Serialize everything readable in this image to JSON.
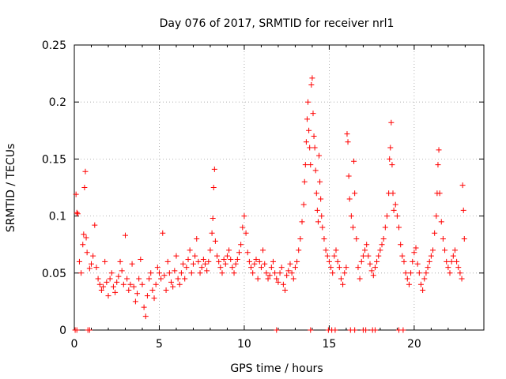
{
  "chart_data": {
    "type": "scatter",
    "title": "Day 076 of 2017, SRMTID for receiver nrl1",
    "xlabel": "GPS time / hours",
    "ylabel": "SRMTID / TECUs",
    "xlim": [
      0,
      24.1
    ],
    "ylim": [
      0,
      0.25
    ],
    "xticks": [
      0,
      5,
      10,
      15,
      20
    ],
    "xtick_labels": [
      "0",
      "5",
      "10",
      "15",
      "20"
    ],
    "yticks": [
      0,
      0.05,
      0.1,
      0.15,
      0.2,
      0.25
    ],
    "ytick_labels": [
      "0",
      "0.05",
      "0.1",
      "0.15",
      "0.2",
      "0.25"
    ],
    "grid": true,
    "marker": "+",
    "color": "#ff0000",
    "series": [
      {
        "name": "SRMTID",
        "points": [
          [
            0.05,
            0.0
          ],
          [
            0.15,
            0.0
          ],
          [
            0.8,
            0.0
          ],
          [
            0.9,
            0.0
          ],
          [
            11.9,
            0.0
          ],
          [
            13.9,
            0.0
          ],
          [
            14.95,
            0.0
          ],
          [
            15.15,
            0.0
          ],
          [
            15.35,
            0.0
          ],
          [
            16.25,
            0.0
          ],
          [
            16.5,
            0.0
          ],
          [
            17.0,
            0.0
          ],
          [
            17.15,
            0.0
          ],
          [
            17.55,
            0.0
          ],
          [
            17.7,
            0.0
          ],
          [
            19.1,
            0.0
          ],
          [
            19.35,
            0.0
          ],
          [
            0.1,
            0.119
          ],
          [
            0.15,
            0.103
          ],
          [
            0.2,
            0.102
          ],
          [
            0.3,
            0.06
          ],
          [
            0.4,
            0.05
          ],
          [
            0.5,
            0.075
          ],
          [
            0.55,
            0.084
          ],
          [
            0.6,
            0.125
          ],
          [
            0.65,
            0.139
          ],
          [
            0.7,
            0.081
          ],
          [
            0.75,
            0.068
          ],
          [
            0.9,
            0.054
          ],
          [
            1.0,
            0.058
          ],
          [
            1.1,
            0.065
          ],
          [
            1.2,
            0.092
          ],
          [
            1.3,
            0.055
          ],
          [
            1.4,
            0.045
          ],
          [
            1.5,
            0.04
          ],
          [
            1.6,
            0.035
          ],
          [
            1.7,
            0.038
          ],
          [
            1.8,
            0.06
          ],
          [
            1.9,
            0.042
          ],
          [
            2.0,
            0.03
          ],
          [
            2.1,
            0.045
          ],
          [
            2.2,
            0.05
          ],
          [
            2.3,
            0.038
          ],
          [
            2.4,
            0.033
          ],
          [
            2.5,
            0.042
          ],
          [
            2.6,
            0.047
          ],
          [
            2.7,
            0.06
          ],
          [
            2.8,
            0.052
          ],
          [
            2.9,
            0.04
          ],
          [
            3.0,
            0.083
          ],
          [
            3.1,
            0.045
          ],
          [
            3.2,
            0.035
          ],
          [
            3.3,
            0.04
          ],
          [
            3.4,
            0.058
          ],
          [
            3.5,
            0.038
          ],
          [
            3.6,
            0.025
          ],
          [
            3.7,
            0.032
          ],
          [
            3.8,
            0.045
          ],
          [
            3.9,
            0.062
          ],
          [
            4.0,
            0.04
          ],
          [
            4.1,
            0.02
          ],
          [
            4.2,
            0.012
          ],
          [
            4.3,
            0.03
          ],
          [
            4.4,
            0.045
          ],
          [
            4.5,
            0.05
          ],
          [
            4.6,
            0.035
          ],
          [
            4.7,
            0.028
          ],
          [
            4.8,
            0.04
          ],
          [
            4.9,
            0.055
          ],
          [
            5.0,
            0.05
          ],
          [
            5.1,
            0.045
          ],
          [
            5.2,
            0.085
          ],
          [
            5.3,
            0.048
          ],
          [
            5.4,
            0.035
          ],
          [
            5.5,
            0.06
          ],
          [
            5.6,
            0.05
          ],
          [
            5.7,
            0.042
          ],
          [
            5.8,
            0.038
          ],
          [
            5.9,
            0.052
          ],
          [
            6.0,
            0.065
          ],
          [
            6.1,
            0.045
          ],
          [
            6.2,
            0.04
          ],
          [
            6.3,
            0.05
          ],
          [
            6.4,
            0.058
          ],
          [
            6.5,
            0.045
          ],
          [
            6.6,
            0.055
          ],
          [
            6.7,
            0.062
          ],
          [
            6.8,
            0.07
          ],
          [
            6.9,
            0.05
          ],
          [
            7.0,
            0.058
          ],
          [
            7.1,
            0.065
          ],
          [
            7.2,
            0.08
          ],
          [
            7.3,
            0.06
          ],
          [
            7.4,
            0.05
          ],
          [
            7.5,
            0.055
          ],
          [
            7.6,
            0.062
          ],
          [
            7.7,
            0.058
          ],
          [
            7.8,
            0.052
          ],
          [
            7.9,
            0.06
          ],
          [
            8.0,
            0.07
          ],
          [
            8.1,
            0.085
          ],
          [
            8.15,
            0.098
          ],
          [
            8.2,
            0.125
          ],
          [
            8.25,
            0.141
          ],
          [
            8.3,
            0.078
          ],
          [
            8.4,
            0.065
          ],
          [
            8.5,
            0.06
          ],
          [
            8.6,
            0.055
          ],
          [
            8.7,
            0.05
          ],
          [
            8.8,
            0.062
          ],
          [
            8.9,
            0.058
          ],
          [
            9.0,
            0.065
          ],
          [
            9.1,
            0.07
          ],
          [
            9.2,
            0.062
          ],
          [
            9.3,
            0.055
          ],
          [
            9.4,
            0.05
          ],
          [
            9.5,
            0.058
          ],
          [
            9.6,
            0.062
          ],
          [
            9.7,
            0.068
          ],
          [
            9.8,
            0.075
          ],
          [
            9.9,
            0.09
          ],
          [
            10.0,
            0.1
          ],
          [
            10.1,
            0.085
          ],
          [
            10.2,
            0.068
          ],
          [
            10.3,
            0.06
          ],
          [
            10.4,
            0.055
          ],
          [
            10.5,
            0.05
          ],
          [
            10.6,
            0.058
          ],
          [
            10.7,
            0.062
          ],
          [
            10.8,
            0.045
          ],
          [
            10.9,
            0.06
          ],
          [
            11.0,
            0.055
          ],
          [
            11.1,
            0.07
          ],
          [
            11.2,
            0.058
          ],
          [
            11.3,
            0.05
          ],
          [
            11.4,
            0.045
          ],
          [
            11.5,
            0.048
          ],
          [
            11.6,
            0.055
          ],
          [
            11.7,
            0.06
          ],
          [
            11.8,
            0.05
          ],
          [
            11.9,
            0.045
          ],
          [
            12.0,
            0.042
          ],
          [
            12.1,
            0.05
          ],
          [
            12.2,
            0.055
          ],
          [
            12.3,
            0.04
          ],
          [
            12.4,
            0.035
          ],
          [
            12.5,
            0.048
          ],
          [
            12.6,
            0.052
          ],
          [
            12.7,
            0.058
          ],
          [
            12.8,
            0.05
          ],
          [
            12.9,
            0.045
          ],
          [
            13.0,
            0.055
          ],
          [
            13.1,
            0.06
          ],
          [
            13.2,
            0.07
          ],
          [
            13.3,
            0.08
          ],
          [
            13.4,
            0.095
          ],
          [
            13.5,
            0.11
          ],
          [
            13.55,
            0.13
          ],
          [
            13.6,
            0.145
          ],
          [
            13.65,
            0.165
          ],
          [
            13.7,
            0.185
          ],
          [
            13.75,
            0.2
          ],
          [
            13.8,
            0.175
          ],
          [
            13.85,
            0.16
          ],
          [
            13.9,
            0.145
          ],
          [
            13.95,
            0.215
          ],
          [
            14.0,
            0.221
          ],
          [
            14.05,
            0.19
          ],
          [
            14.1,
            0.17
          ],
          [
            14.15,
            0.16
          ],
          [
            14.2,
            0.14
          ],
          [
            14.25,
            0.12
          ],
          [
            14.3,
            0.105
          ],
          [
            14.35,
            0.095
          ],
          [
            14.4,
            0.153
          ],
          [
            14.45,
            0.13
          ],
          [
            14.5,
            0.115
          ],
          [
            14.55,
            0.1
          ],
          [
            14.6,
            0.09
          ],
          [
            14.7,
            0.08
          ],
          [
            14.8,
            0.07
          ],
          [
            14.9,
            0.065
          ],
          [
            15.0,
            0.06
          ],
          [
            15.1,
            0.055
          ],
          [
            15.2,
            0.05
          ],
          [
            15.3,
            0.065
          ],
          [
            15.4,
            0.07
          ],
          [
            15.5,
            0.06
          ],
          [
            15.6,
            0.055
          ],
          [
            15.7,
            0.045
          ],
          [
            15.8,
            0.04
          ],
          [
            15.9,
            0.05
          ],
          [
            16.0,
            0.055
          ],
          [
            16.05,
            0.172
          ],
          [
            16.1,
            0.165
          ],
          [
            16.15,
            0.135
          ],
          [
            16.2,
            0.115
          ],
          [
            16.3,
            0.1
          ],
          [
            16.4,
            0.09
          ],
          [
            16.45,
            0.148
          ],
          [
            16.5,
            0.12
          ],
          [
            16.6,
            0.08
          ],
          [
            16.7,
            0.055
          ],
          [
            16.8,
            0.045
          ],
          [
            16.9,
            0.06
          ],
          [
            17.0,
            0.065
          ],
          [
            17.1,
            0.07
          ],
          [
            17.2,
            0.075
          ],
          [
            17.3,
            0.065
          ],
          [
            17.4,
            0.058
          ],
          [
            17.5,
            0.052
          ],
          [
            17.6,
            0.048
          ],
          [
            17.7,
            0.055
          ],
          [
            17.8,
            0.06
          ],
          [
            17.9,
            0.065
          ],
          [
            18.0,
            0.07
          ],
          [
            18.1,
            0.075
          ],
          [
            18.2,
            0.08
          ],
          [
            18.3,
            0.09
          ],
          [
            18.4,
            0.1
          ],
          [
            18.5,
            0.12
          ],
          [
            18.55,
            0.15
          ],
          [
            18.6,
            0.16
          ],
          [
            18.65,
            0.182
          ],
          [
            18.7,
            0.145
          ],
          [
            18.75,
            0.12
          ],
          [
            18.8,
            0.105
          ],
          [
            18.9,
            0.11
          ],
          [
            19.0,
            0.1
          ],
          [
            19.1,
            0.09
          ],
          [
            19.2,
            0.075
          ],
          [
            19.3,
            0.065
          ],
          [
            19.4,
            0.06
          ],
          [
            19.5,
            0.05
          ],
          [
            19.6,
            0.045
          ],
          [
            19.7,
            0.04
          ],
          [
            19.8,
            0.05
          ],
          [
            19.9,
            0.06
          ],
          [
            20.0,
            0.068
          ],
          [
            20.1,
            0.072
          ],
          [
            20.2,
            0.058
          ],
          [
            20.3,
            0.05
          ],
          [
            20.4,
            0.04
          ],
          [
            20.5,
            0.035
          ],
          [
            20.6,
            0.045
          ],
          [
            20.7,
            0.05
          ],
          [
            20.8,
            0.055
          ],
          [
            20.9,
            0.06
          ],
          [
            21.0,
            0.065
          ],
          [
            21.1,
            0.07
          ],
          [
            21.2,
            0.085
          ],
          [
            21.3,
            0.1
          ],
          [
            21.35,
            0.12
          ],
          [
            21.4,
            0.145
          ],
          [
            21.45,
            0.158
          ],
          [
            21.5,
            0.12
          ],
          [
            21.6,
            0.095
          ],
          [
            21.7,
            0.08
          ],
          [
            21.8,
            0.07
          ],
          [
            21.9,
            0.06
          ],
          [
            22.0,
            0.055
          ],
          [
            22.1,
            0.05
          ],
          [
            22.2,
            0.06
          ],
          [
            22.3,
            0.065
          ],
          [
            22.4,
            0.07
          ],
          [
            22.5,
            0.06
          ],
          [
            22.6,
            0.055
          ],
          [
            22.7,
            0.05
          ],
          [
            22.8,
            0.045
          ],
          [
            22.85,
            0.127
          ],
          [
            22.9,
            0.105
          ],
          [
            22.95,
            0.08
          ]
        ]
      }
    ]
  }
}
